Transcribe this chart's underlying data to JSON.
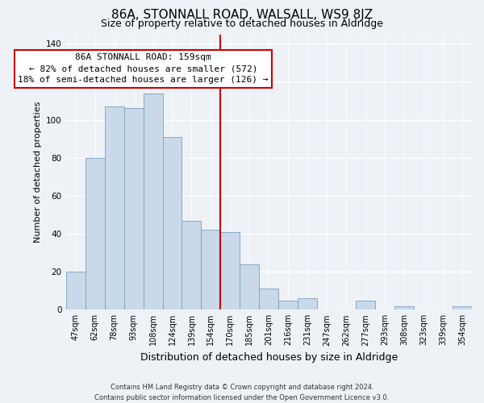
{
  "title": "86A, STONNALL ROAD, WALSALL, WS9 8JZ",
  "subtitle": "Size of property relative to detached houses in Aldridge",
  "xlabel": "Distribution of detached houses by size in Aldridge",
  "ylabel": "Number of detached properties",
  "bar_labels": [
    "47sqm",
    "62sqm",
    "78sqm",
    "93sqm",
    "108sqm",
    "124sqm",
    "139sqm",
    "154sqm",
    "170sqm",
    "185sqm",
    "201sqm",
    "216sqm",
    "231sqm",
    "247sqm",
    "262sqm",
    "277sqm",
    "293sqm",
    "308sqm",
    "323sqm",
    "339sqm",
    "354sqm"
  ],
  "bar_values": [
    20,
    80,
    107,
    106,
    114,
    91,
    47,
    42,
    41,
    24,
    11,
    5,
    6,
    0,
    0,
    5,
    0,
    2,
    0,
    0,
    2
  ],
  "bar_color": "#c9d9ea",
  "bar_edge_color": "#7a9fc0",
  "highlight_bar_index": 7,
  "highlight_line_color": "#cc0000",
  "annotation_title": "86A STONNALL ROAD: 159sqm",
  "annotation_line1": "← 82% of detached houses are smaller (572)",
  "annotation_line2": "18% of semi-detached houses are larger (126) →",
  "annotation_box_facecolor": "#ffffff",
  "annotation_box_edgecolor": "#cc0000",
  "ylim": [
    0,
    145
  ],
  "yticks": [
    0,
    20,
    40,
    60,
    80,
    100,
    120,
    140
  ],
  "footer_line1": "Contains HM Land Registry data © Crown copyright and database right 2024.",
  "footer_line2": "Contains public sector information licensed under the Open Government Licence v3.0.",
  "background_color": "#eef2f7",
  "grid_color": "#ffffff",
  "title_fontsize": 11,
  "subtitle_fontsize": 9,
  "ylabel_fontsize": 8,
  "xlabel_fontsize": 9,
  "tick_fontsize": 7,
  "footer_fontsize": 6,
  "annotation_fontsize": 8
}
